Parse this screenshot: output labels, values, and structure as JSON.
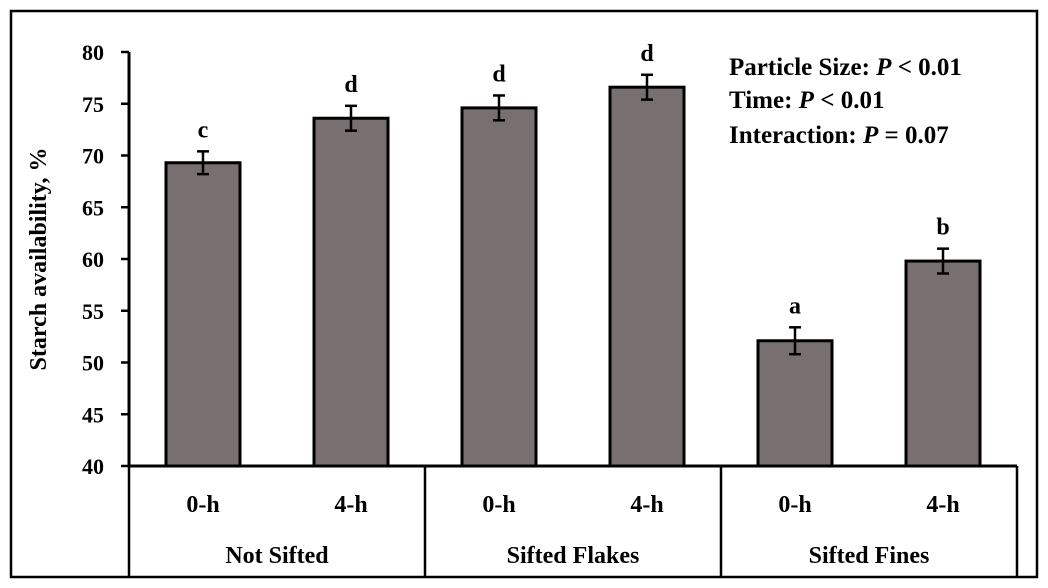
{
  "chart_data": {
    "type": "bar",
    "ylabel": "Starch availability, %",
    "ylim": [
      40,
      80
    ],
    "yticks": [
      40,
      45,
      50,
      55,
      60,
      65,
      70,
      75,
      80
    ],
    "grid": false,
    "groups": [
      "Not Sifted",
      "Sifted Flakes",
      "Sifted Fines"
    ],
    "categories": [
      "0-h",
      "4-h",
      "0-h",
      "4-h",
      "0-h",
      "4-h"
    ],
    "values": [
      69.3,
      73.6,
      74.6,
      76.6,
      52.1,
      59.8
    ],
    "errors": [
      1.1,
      1.2,
      1.2,
      1.2,
      1.3,
      1.2
    ],
    "significance_letters": [
      "c",
      "d",
      "d",
      "d",
      "a",
      "b"
    ],
    "bar_color": "#787070",
    "annotations": [
      {
        "label": "Particle Size: ",
        "p_label": "P",
        "relation": " < 0.01"
      },
      {
        "label": "Time: ",
        "p_label": "P",
        "relation": " < 0.01"
      },
      {
        "label": "Interaction: ",
        "p_label": "P",
        "relation": " = 0.07"
      }
    ]
  }
}
